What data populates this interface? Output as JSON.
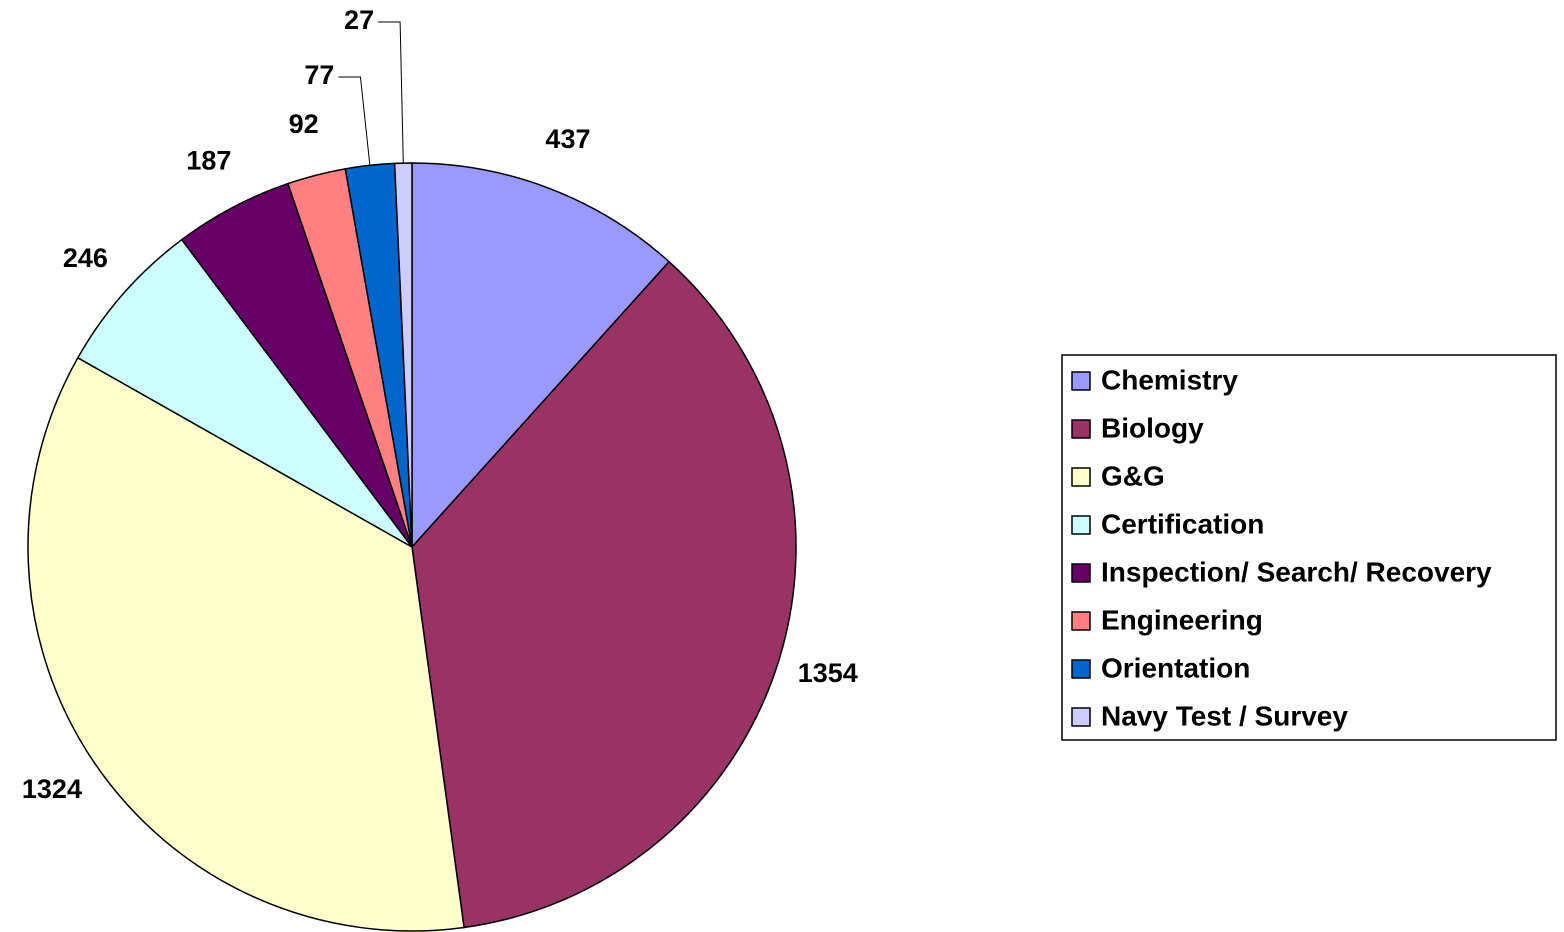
{
  "chart_data": {
    "type": "pie",
    "categories": [
      "Chemistry",
      "Biology",
      "G&G",
      "Certification",
      "Inspection/ Search/ Recovery",
      "Engineering",
      "Orientation",
      "Navy Test / Survey"
    ],
    "values": [
      437,
      1354,
      1324,
      246,
      187,
      92,
      77,
      27
    ],
    "colors": [
      "#9999ff",
      "#993366",
      "#ffffcc",
      "#ccffff",
      "#660066",
      "#ff8080",
      "#0066cc",
      "#ccccff"
    ],
    "legend": "right"
  }
}
